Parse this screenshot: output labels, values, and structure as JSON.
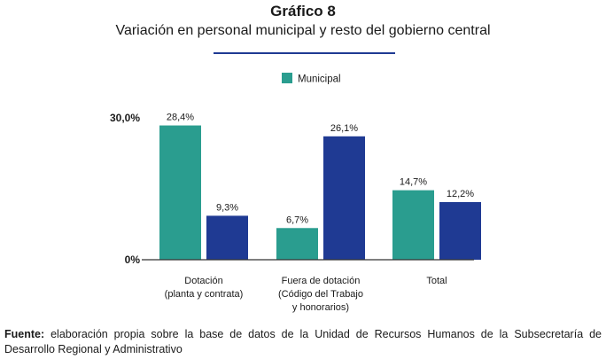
{
  "heading": {
    "label": "Gráfico 8",
    "title": "Variación en personal municipal y resto del gobierno central"
  },
  "footnote": {
    "label": "Fuente:",
    "text": "elaboración propia sobre la base de datos de la Unidad de Recursos Humanos de la Subsecretaría de Desarrollo Regional y Administrativo"
  },
  "chart_data": {
    "type": "bar",
    "categories": [
      [
        "Dotación",
        "(planta y contrata)"
      ],
      [
        "Fuera de dotación",
        "(Código del Trabajo",
        "y honorarios)"
      ],
      [
        "Total"
      ]
    ],
    "series": [
      {
        "name": "Municipal",
        "values": [
          28.4,
          6.7,
          14.7
        ],
        "labels": [
          "28,4%",
          "6,7%",
          "14,7%"
        ],
        "color": "#2a9d8f"
      },
      {
        "name": "",
        "values": [
          9.3,
          26.1,
          12.2
        ],
        "labels": [
          "9,3%",
          "26,1%",
          "12,2%"
        ],
        "color": "#1f3a93"
      }
    ],
    "legend": {
      "entries": [
        "Municipal"
      ],
      "placement": "top-center"
    },
    "yticks": [
      0,
      30
    ],
    "ytick_labels": [
      "0%",
      "30,0%"
    ],
    "ylim": [
      0,
      30
    ],
    "grid": false
  }
}
